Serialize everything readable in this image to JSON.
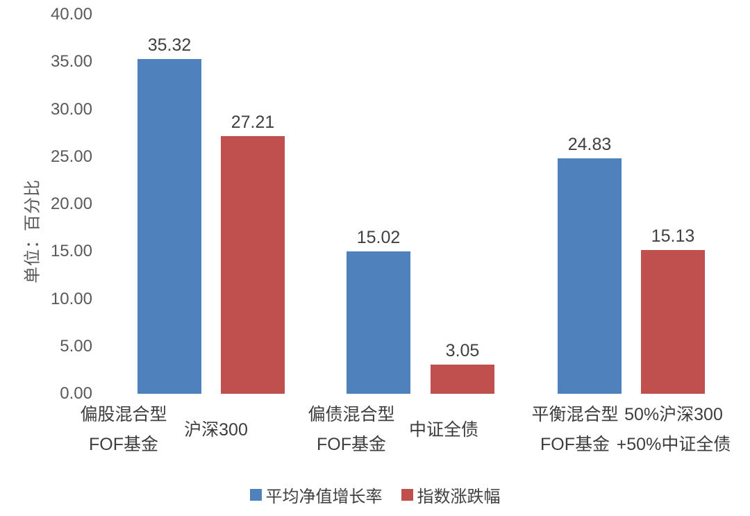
{
  "chart_data": {
    "type": "bar",
    "title": "",
    "y_axis_title": "单位：百分比",
    "xlabel": "",
    "ylabel": "单位：百分比",
    "ylim": [
      0,
      40
    ],
    "ytick_step": 5,
    "yticks": [
      "40.00",
      "35.00",
      "30.00",
      "25.00",
      "20.00",
      "15.00",
      "10.00",
      "5.00",
      "0.00"
    ],
    "ytick_values": [
      40,
      35,
      30,
      25,
      20,
      15,
      10,
      5,
      0
    ],
    "grid": false,
    "legend_position": "bottom",
    "series": [
      {
        "name": "平均净值增长率",
        "color": "#4F81BD"
      },
      {
        "name": "指数涨跌幅",
        "color": "#C0504D"
      }
    ],
    "bars": [
      {
        "category": "偏股混合型FOF基金",
        "category_lines": [
          "偏股混合型",
          "FOF基金"
        ],
        "series": "平均净值增长率",
        "series_index": 0,
        "value": 35.32,
        "label": "35.32"
      },
      {
        "category": "沪深300",
        "category_lines": [
          "沪深300"
        ],
        "series": "指数涨跌幅",
        "series_index": 1,
        "value": 27.21,
        "label": "27.21"
      },
      {
        "category": "偏债混合型FOF基金",
        "category_lines": [
          "偏债混合型",
          "FOF基金"
        ],
        "series": "平均净值增长率",
        "series_index": 0,
        "value": 15.02,
        "label": "15.02"
      },
      {
        "category": "中证全债",
        "category_lines": [
          "中证全债"
        ],
        "series": "指数涨跌幅",
        "series_index": 1,
        "value": 3.05,
        "label": "3.05"
      },
      {
        "category": "平衡混合型FOF基金",
        "category_lines": [
          "平衡混合型",
          "FOF基金"
        ],
        "series": "平均净值增长率",
        "series_index": 0,
        "value": 24.83,
        "label": "24.83"
      },
      {
        "category": "50%沪深300+50%中证全债",
        "category_lines": [
          "50%沪深300",
          "+50%中证全债"
        ],
        "series": "指数涨跌幅",
        "series_index": 1,
        "value": 15.13,
        "label": "15.13"
      }
    ],
    "text_colors": {
      "ticks": "#595959",
      "values": "#404040",
      "categories": "#3d3d3d",
      "legend": "#404040"
    }
  }
}
